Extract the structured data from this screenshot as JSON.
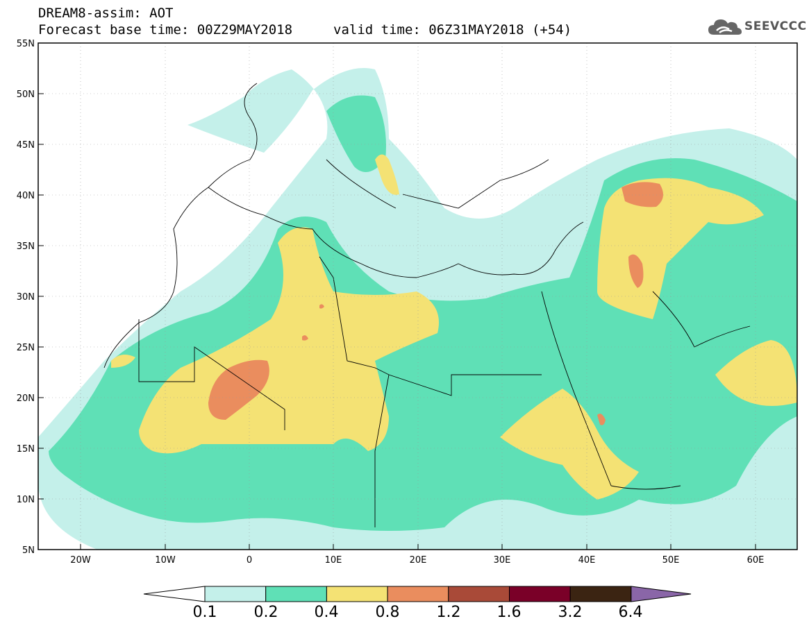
{
  "header": {
    "line1": "DREAM8-assim: AOT",
    "line2_base": "Forecast base time: 00Z29MAY2018",
    "line2_valid": "valid time: 06Z31MAY2018 (+54)"
  },
  "logo": {
    "text": "SEEVCCC",
    "icon": "cloud-logo-icon"
  },
  "map": {
    "lat_ticks": [
      "55N",
      "50N",
      "45N",
      "40N",
      "35N",
      "30N",
      "25N",
      "20N",
      "15N",
      "10N",
      "5N"
    ],
    "lon_ticks": [
      "20W",
      "10W",
      "0",
      "10E",
      "20E",
      "30E",
      "40E",
      "50E",
      "60E"
    ],
    "background": "#ffffff"
  },
  "colorbar": {
    "labels": [
      "0.1",
      "0.2",
      "0.4",
      "0.8",
      "1.2",
      "1.6",
      "3.2",
      "6.4"
    ],
    "colors": [
      "#ffffff",
      "#c4f0ea",
      "#5fe0b6",
      "#f4e274",
      "#ea8d5e",
      "#a94a38",
      "#7a0028",
      "#3b2412",
      "#8a66a8"
    ]
  }
}
